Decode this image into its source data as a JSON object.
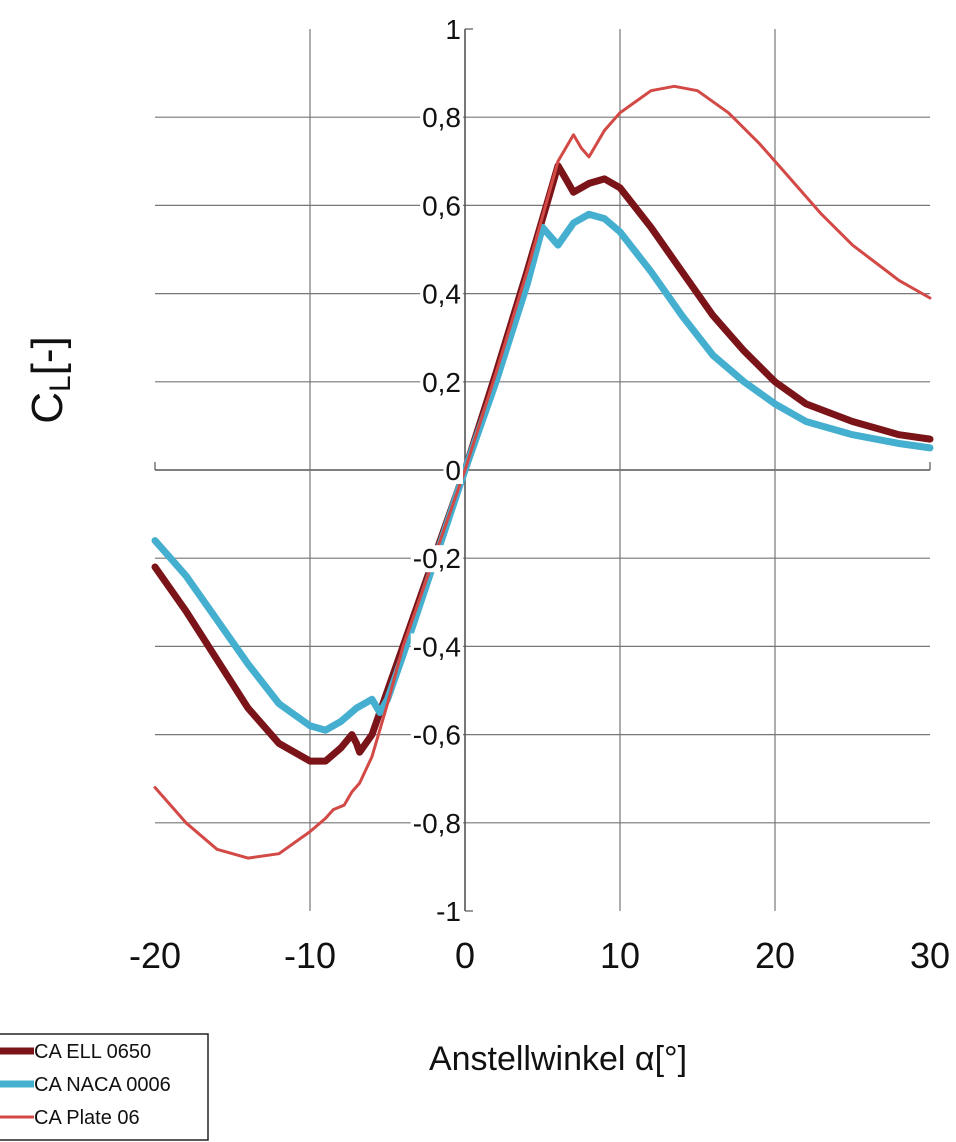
{
  "chart_data": {
    "type": "line",
    "title": "",
    "xlabel": "Anstellwinkel α[°]",
    "ylabel": {
      "main": "C",
      "sub": "L",
      "suffix": "[-]"
    },
    "xlim": [
      -20,
      30
    ],
    "ylim": [
      -1,
      1
    ],
    "x_ticks": [
      -20,
      -10,
      0,
      10,
      20,
      30
    ],
    "x_tick_labels": [
      "-20",
      "-10",
      "0",
      "10",
      "20",
      "30"
    ],
    "y_ticks": [
      -1,
      -0.8,
      -0.6,
      -0.4,
      -0.2,
      0,
      0.2,
      0.4,
      0.6,
      0.8,
      1
    ],
    "y_tick_labels": [
      "-1",
      "-0,8",
      "-0,6",
      "-0,4",
      "-0,2",
      "0",
      "0,2",
      "0,4",
      "0,6",
      "0,8",
      "1"
    ],
    "grid": true,
    "legend_position": "bottom-left",
    "series": [
      {
        "name": "CA ELL 0650",
        "color": "#7b1418",
        "points": [
          [
            -20,
            -0.22
          ],
          [
            -18,
            -0.32
          ],
          [
            -16,
            -0.43
          ],
          [
            -14,
            -0.54
          ],
          [
            -12,
            -0.62
          ],
          [
            -10,
            -0.66
          ],
          [
            -9,
            -0.66
          ],
          [
            -8,
            -0.63
          ],
          [
            -7.3,
            -0.6
          ],
          [
            -7,
            -0.62
          ],
          [
            -6.8,
            -0.64
          ],
          [
            -6,
            -0.6
          ],
          [
            -5,
            -0.5
          ],
          [
            -4,
            -0.4
          ],
          [
            -2,
            -0.2
          ],
          [
            0,
            0.0
          ],
          [
            2,
            0.22
          ],
          [
            4,
            0.45
          ],
          [
            5.5,
            0.63
          ],
          [
            6,
            0.69
          ],
          [
            6.5,
            0.66
          ],
          [
            7,
            0.63
          ],
          [
            7.5,
            0.64
          ],
          [
            8,
            0.65
          ],
          [
            9,
            0.66
          ],
          [
            10,
            0.64
          ],
          [
            12,
            0.55
          ],
          [
            14,
            0.45
          ],
          [
            16,
            0.35
          ],
          [
            18,
            0.27
          ],
          [
            20,
            0.2
          ],
          [
            22,
            0.15
          ],
          [
            25,
            0.11
          ],
          [
            28,
            0.08
          ],
          [
            30,
            0.07
          ]
        ]
      },
      {
        "name": "CA NACA 0006",
        "color": "#45afcf",
        "points": [
          [
            -20,
            -0.16
          ],
          [
            -18,
            -0.24
          ],
          [
            -16,
            -0.34
          ],
          [
            -14,
            -0.44
          ],
          [
            -12,
            -0.53
          ],
          [
            -10,
            -0.58
          ],
          [
            -9,
            -0.59
          ],
          [
            -8,
            -0.57
          ],
          [
            -7,
            -0.54
          ],
          [
            -6,
            -0.52
          ],
          [
            -5.5,
            -0.55
          ],
          [
            -5,
            -0.52
          ],
          [
            -4,
            -0.42
          ],
          [
            -2,
            -0.21
          ],
          [
            0,
            0.0
          ],
          [
            2,
            0.2
          ],
          [
            4,
            0.42
          ],
          [
            5,
            0.55
          ],
          [
            5.5,
            0.53
          ],
          [
            6,
            0.51
          ],
          [
            7,
            0.56
          ],
          [
            8,
            0.58
          ],
          [
            9,
            0.57
          ],
          [
            10,
            0.54
          ],
          [
            12,
            0.45
          ],
          [
            14,
            0.35
          ],
          [
            16,
            0.26
          ],
          [
            18,
            0.2
          ],
          [
            20,
            0.15
          ],
          [
            22,
            0.11
          ],
          [
            25,
            0.08
          ],
          [
            28,
            0.06
          ],
          [
            30,
            0.05
          ]
        ]
      },
      {
        "name": "CA Plate 06",
        "color": "#d24946",
        "points": [
          [
            -20,
            -0.72
          ],
          [
            -18,
            -0.8
          ],
          [
            -16,
            -0.86
          ],
          [
            -14,
            -0.88
          ],
          [
            -12,
            -0.87
          ],
          [
            -10,
            -0.82
          ],
          [
            -9,
            -0.79
          ],
          [
            -8.5,
            -0.77
          ],
          [
            -7.8,
            -0.76
          ],
          [
            -7.3,
            -0.73
          ],
          [
            -6.8,
            -0.71
          ],
          [
            -6,
            -0.65
          ],
          [
            -5,
            -0.53
          ],
          [
            -4,
            -0.4
          ],
          [
            -2,
            -0.2
          ],
          [
            0,
            0.0
          ],
          [
            2,
            0.22
          ],
          [
            4,
            0.45
          ],
          [
            6,
            0.7
          ],
          [
            7,
            0.76
          ],
          [
            7.5,
            0.73
          ],
          [
            8,
            0.71
          ],
          [
            9,
            0.77
          ],
          [
            10,
            0.81
          ],
          [
            12,
            0.86
          ],
          [
            13.5,
            0.87
          ],
          [
            15,
            0.86
          ],
          [
            17,
            0.81
          ],
          [
            19,
            0.74
          ],
          [
            21,
            0.66
          ],
          [
            23,
            0.58
          ],
          [
            25,
            0.51
          ],
          [
            28,
            0.43
          ],
          [
            30,
            0.39
          ]
        ]
      }
    ]
  }
}
